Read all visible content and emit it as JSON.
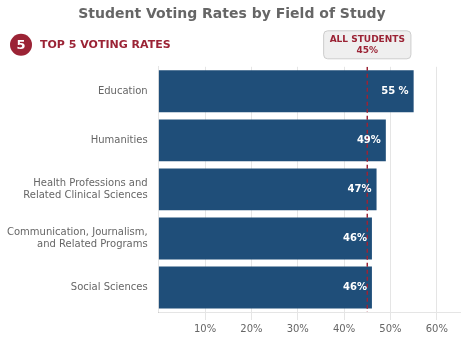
{
  "chart_data": {
    "type": "bar",
    "orientation": "horizontal",
    "title": "Student Voting Rates by Field of Study",
    "categories": [
      "Education",
      "Humanities",
      "Health Professions and\nRelated Clinical Sciences",
      "Communication, Journalism,\nand Related Programs",
      "Social Sciences"
    ],
    "values": [
      55,
      49,
      47,
      46,
      46
    ],
    "value_labels": [
      "55 %",
      "49%",
      "47%",
      "46%",
      "46%"
    ],
    "data_labels": true,
    "color": "#1f4e79",
    "xlim": [
      0,
      65
    ],
    "xticks": [
      {
        "value": 10,
        "label": "10%"
      },
      {
        "value": 20,
        "label": "20%"
      },
      {
        "value": 30,
        "label": "30%"
      },
      {
        "value": 40,
        "label": "40%"
      },
      {
        "value": 50,
        "label": "50%"
      },
      {
        "value": 60,
        "label": "60%"
      }
    ],
    "grid": true,
    "annotations": [
      {
        "text": "ALL STUDENTS\n45%",
        "value": 45,
        "color": "#9b2335"
      },
      {
        "text": "5",
        "marker": "circle",
        "color": "#9b2335"
      },
      {
        "text": "TOP 5 VOTING RATES",
        "color": "#9b2335"
      }
    ]
  }
}
